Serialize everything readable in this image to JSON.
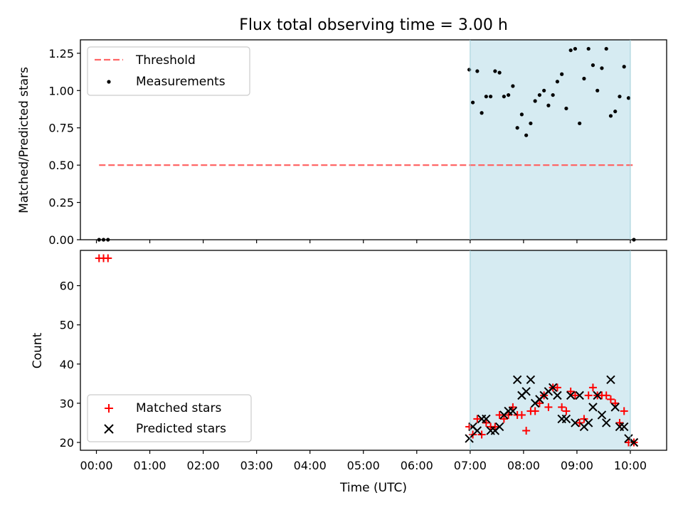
{
  "chart_data": [
    {
      "type": "scatter",
      "title": "Flux total observing time = 3.00 h",
      "ylabel": "Matched/Predicted stars",
      "xlabel": "",
      "ylim": [
        0,
        1.34
      ],
      "y_ticks": [
        "0.00",
        "0.25",
        "0.50",
        "0.75",
        "1.00",
        "1.25"
      ],
      "shaded_interval": [
        "07:00",
        "10:00"
      ],
      "shade_color": "#add8e6",
      "legend": {
        "location": "top-left",
        "entries": [
          "Threshold",
          "Measurements"
        ]
      },
      "series": [
        {
          "name": "Threshold",
          "style": "dashed-line",
          "color": "#ff6666",
          "x": [
            "00:03",
            "10:05"
          ],
          "y": [
            0.5,
            0.5
          ]
        },
        {
          "name": "Measurements",
          "style": "dots",
          "color": "#000000",
          "x": [
            "00:03",
            "00:08",
            "00:13",
            "06:59",
            "07:03",
            "07:08",
            "07:13",
            "07:18",
            "07:23",
            "07:28",
            "07:33",
            "07:38",
            "07:43",
            "07:48",
            "07:53",
            "07:58",
            "08:03",
            "08:08",
            "08:13",
            "08:18",
            "08:23",
            "08:28",
            "08:33",
            "08:38",
            "08:43",
            "08:48",
            "08:53",
            "08:58",
            "09:03",
            "09:08",
            "09:13",
            "09:18",
            "09:23",
            "09:28",
            "09:33",
            "09:38",
            "09:43",
            "09:48",
            "09:53",
            "09:58",
            "10:04"
          ],
          "y": [
            0.0,
            0.0,
            0.0,
            1.14,
            0.92,
            1.13,
            0.85,
            0.96,
            0.96,
            1.13,
            1.12,
            0.96,
            0.97,
            1.03,
            0.75,
            0.84,
            0.7,
            0.78,
            0.93,
            0.97,
            1.0,
            0.9,
            0.97,
            1.06,
            1.11,
            0.88,
            1.27,
            1.28,
            0.78,
            1.08,
            1.28,
            1.17,
            1.0,
            1.15,
            1.28,
            0.83,
            0.86,
            0.96,
            1.16,
            0.95,
            0.0
          ]
        }
      ]
    },
    {
      "type": "scatter",
      "title": "",
      "ylabel": "Count",
      "xlabel": "Time (UTC)",
      "ylim": [
        18,
        69
      ],
      "y_ticks": [
        "20",
        "30",
        "40",
        "50",
        "60"
      ],
      "x_ticks": [
        "00:00",
        "01:00",
        "02:00",
        "03:00",
        "04:00",
        "05:00",
        "06:00",
        "07:00",
        "08:00",
        "09:00",
        "10:00"
      ],
      "shaded_interval": [
        "07:00",
        "10:00"
      ],
      "shade_color": "#add8e6",
      "legend": {
        "location": "bottom-left",
        "entries": [
          "Matched stars",
          "Predicted stars"
        ]
      },
      "series": [
        {
          "name": "Matched stars",
          "style": "plus",
          "color": "#ff0000",
          "x": [
            "00:03",
            "00:08",
            "00:13",
            "06:59",
            "07:03",
            "07:08",
            "07:13",
            "07:18",
            "07:23",
            "07:28",
            "07:33",
            "07:38",
            "07:43",
            "07:48",
            "07:53",
            "07:58",
            "08:03",
            "08:08",
            "08:13",
            "08:18",
            "08:23",
            "08:28",
            "08:33",
            "08:38",
            "08:43",
            "08:48",
            "08:53",
            "08:58",
            "09:03",
            "09:08",
            "09:13",
            "09:18",
            "09:23",
            "09:28",
            "09:33",
            "09:38",
            "09:43",
            "09:48",
            "09:53",
            "09:58",
            "10:04"
          ],
          "y": [
            67,
            67,
            67,
            24,
            22,
            26,
            22,
            25,
            24,
            24,
            27,
            26,
            27,
            29,
            27,
            27,
            23,
            28,
            28,
            30,
            32,
            29,
            34,
            34,
            29,
            28,
            33,
            32,
            25,
            26,
            32,
            34,
            32,
            32,
            32,
            31,
            30,
            25,
            28,
            20,
            20
          ]
        },
        {
          "name": "Predicted stars",
          "style": "x",
          "color": "#000000",
          "x": [
            "06:59",
            "07:03",
            "07:08",
            "07:13",
            "07:18",
            "07:23",
            "07:28",
            "07:33",
            "07:38",
            "07:43",
            "07:48",
            "07:53",
            "07:58",
            "08:03",
            "08:08",
            "08:13",
            "08:18",
            "08:23",
            "08:28",
            "08:33",
            "08:38",
            "08:43",
            "08:48",
            "08:53",
            "08:58",
            "09:03",
            "09:08",
            "09:13",
            "09:18",
            "09:23",
            "09:28",
            "09:33",
            "09:38",
            "09:43",
            "09:48",
            "09:53",
            "09:58",
            "10:04"
          ],
          "y": [
            21,
            24,
            23,
            26,
            26,
            23,
            23,
            24,
            27,
            28,
            28,
            36,
            32,
            33,
            36,
            30,
            31,
            32,
            33,
            34,
            32,
            26,
            26,
            32,
            25,
            32,
            24,
            25,
            29,
            32,
            27,
            25,
            36,
            29,
            24,
            24,
            21,
            20
          ]
        }
      ]
    }
  ]
}
